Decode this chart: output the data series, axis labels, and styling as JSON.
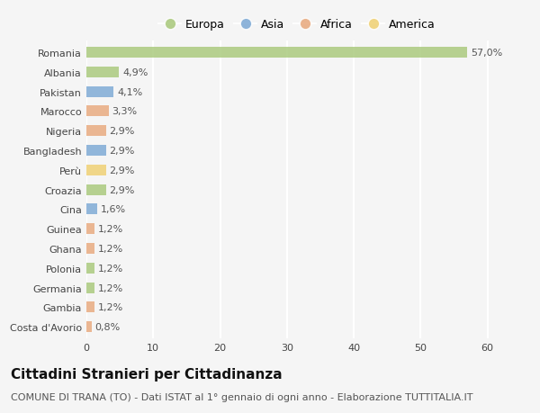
{
  "categories": [
    "Costa d'Avorio",
    "Gambia",
    "Germania",
    "Polonia",
    "Ghana",
    "Guinea",
    "Cina",
    "Croazia",
    "Perù",
    "Bangladesh",
    "Nigeria",
    "Marocco",
    "Pakistan",
    "Albania",
    "Romania"
  ],
  "values": [
    0.8,
    1.2,
    1.2,
    1.2,
    1.2,
    1.2,
    1.6,
    2.9,
    2.9,
    2.9,
    2.9,
    3.3,
    4.1,
    4.9,
    57.0
  ],
  "labels": [
    "0,8%",
    "1,2%",
    "1,2%",
    "1,2%",
    "1,2%",
    "1,2%",
    "1,6%",
    "2,9%",
    "2,9%",
    "2,9%",
    "2,9%",
    "3,3%",
    "4,1%",
    "4,9%",
    "57,0%"
  ],
  "colors": [
    "#e8a87c",
    "#e8a87c",
    "#a8c87a",
    "#a8c87a",
    "#e8a87c",
    "#e8a87c",
    "#7ba8d4",
    "#a8c87a",
    "#f0d070",
    "#7ba8d4",
    "#e8a87c",
    "#e8a87c",
    "#7ba8d4",
    "#a8c87a",
    "#a8c87a"
  ],
  "legend_labels": [
    "Europa",
    "Asia",
    "Africa",
    "America"
  ],
  "legend_colors": [
    "#a8c87a",
    "#7ba8d4",
    "#e8a87c",
    "#f0d070"
  ],
  "title": "Cittadini Stranieri per Cittadinanza",
  "subtitle": "COMUNE DI TRANA (TO) - Dati ISTAT al 1° gennaio di ogni anno - Elaborazione TUTTITALIA.IT",
  "xlim": [
    0,
    63
  ],
  "xticks": [
    0,
    10,
    20,
    30,
    40,
    50,
    60
  ],
  "background_color": "#f5f5f5",
  "bar_height": 0.55,
  "title_fontsize": 11,
  "subtitle_fontsize": 8,
  "label_fontsize": 8,
  "tick_fontsize": 8,
  "legend_fontsize": 9
}
